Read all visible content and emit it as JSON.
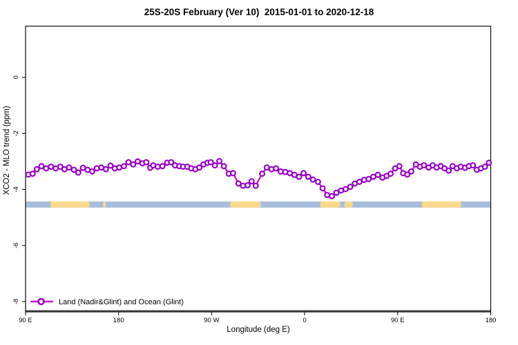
{
  "title": "25S-20S February (Ver 10)  2015-01-01 to 2020-12-18",
  "chart_data": {
    "type": "line",
    "title": "25S-20S February (Ver 10)  2015-01-01 to 2020-12-18",
    "xlabel": "Longitude (deg E)",
    "ylabel": "XCO2 - MLO trend (ppm)",
    "x_axis": {
      "note": "longitude axis runs eastward from 90E across the dateline to 180; axis_deg = unwrapped degrees",
      "range_axis_deg": [
        90,
        540
      ],
      "ticks_axis_deg": [
        90,
        180,
        270,
        360,
        450,
        540
      ],
      "tick_labels": [
        "90 E",
        "180",
        "90 W",
        "0",
        "90 E",
        "180"
      ]
    },
    "y_axis": {
      "range": [
        -8.4,
        1.8
      ],
      "ticks": [
        0,
        -2,
        -4,
        -6,
        -8
      ],
      "tick_labels": [
        "0",
        "-2",
        "-4",
        "-6",
        "-8"
      ]
    },
    "legend": {
      "position": "bottom-left",
      "entries": [
        "Land (Nadir&Glint) and Ocean (Glint)"
      ]
    },
    "colors": {
      "line": "#C217CF",
      "marker_ring": "#9803C9",
      "marker_fill": "#ffffff",
      "ocean_band": "#A6BEDC",
      "land_band": "#FBD98A",
      "axis_heavy": "#4d4d4d",
      "box": "#1a1a1a"
    },
    "surface_band": {
      "top_value": -4.43,
      "bottom_value": -4.65,
      "segments": [
        {
          "surface": "ocean",
          "from": 90,
          "to": 540
        },
        {
          "surface": "land",
          "from": 114,
          "to": 152
        },
        {
          "surface": "land",
          "from": 165,
          "to": 167.5
        },
        {
          "surface": "land",
          "from": 288,
          "to": 317.5
        },
        {
          "surface": "land",
          "from": 375,
          "to": 394.5
        },
        {
          "surface": "land",
          "from": 398.5,
          "to": 406.5
        },
        {
          "surface": "land",
          "from": 473,
          "to": 511.5
        }
      ]
    },
    "series": [
      {
        "name": "Land (Nadir&Glint) and Ocean (Glint)",
        "marker": "open-circle",
        "points": [
          [
            92.7,
            -3.47
          ],
          [
            96.9,
            -3.44
          ],
          [
            100.9,
            -3.28
          ],
          [
            105.4,
            -3.17
          ],
          [
            109.9,
            -3.25
          ],
          [
            114.5,
            -3.19
          ],
          [
            119.2,
            -3.25
          ],
          [
            123.6,
            -3.19
          ],
          [
            127.6,
            -3.28
          ],
          [
            132.1,
            -3.22
          ],
          [
            136.8,
            -3.3
          ],
          [
            141.0,
            -3.4
          ],
          [
            145.5,
            -3.23
          ],
          [
            150.0,
            -3.3
          ],
          [
            154.4,
            -3.36
          ],
          [
            158.9,
            -3.25
          ],
          [
            163.3,
            -3.22
          ],
          [
            167.8,
            -3.28
          ],
          [
            172.2,
            -3.15
          ],
          [
            176.3,
            -3.25
          ],
          [
            180.7,
            -3.22
          ],
          [
            185.2,
            -3.17
          ],
          [
            189.6,
            -3.03
          ],
          [
            194.1,
            -3.11
          ],
          [
            198.5,
            -3.0
          ],
          [
            203.0,
            -3.07
          ],
          [
            206.8,
            -3.03
          ],
          [
            210.6,
            -3.23
          ],
          [
            213.5,
            -3.14
          ],
          [
            217.9,
            -3.19
          ],
          [
            222.4,
            -3.17
          ],
          [
            226.9,
            -3.05
          ],
          [
            230.9,
            -3.03
          ],
          [
            234.6,
            -3.14
          ],
          [
            238.7,
            -3.17
          ],
          [
            242.5,
            -3.19
          ],
          [
            246.5,
            -3.19
          ],
          [
            250.3,
            -3.25
          ],
          [
            254.3,
            -3.28
          ],
          [
            258.1,
            -3.22
          ],
          [
            262.1,
            -3.11
          ],
          [
            265.9,
            -3.05
          ],
          [
            269.2,
            -3.03
          ],
          [
            273.2,
            -3.14
          ],
          [
            277.5,
            -2.99
          ],
          [
            281.9,
            -3.17
          ],
          [
            286.6,
            -3.44
          ],
          [
            290.8,
            -3.42
          ],
          [
            296.0,
            -3.79
          ],
          [
            300.4,
            -3.87
          ],
          [
            304.9,
            -3.85
          ],
          [
            308.7,
            -3.71
          ],
          [
            312.7,
            -3.87
          ],
          [
            318.9,
            -3.44
          ],
          [
            323.4,
            -3.22
          ],
          [
            327.9,
            -3.28
          ],
          [
            332.3,
            -3.25
          ],
          [
            336.8,
            -3.36
          ],
          [
            341.2,
            -3.38
          ],
          [
            345.7,
            -3.42
          ],
          [
            350.1,
            -3.48
          ],
          [
            354.6,
            -3.55
          ],
          [
            359.0,
            -3.42
          ],
          [
            363.5,
            -3.55
          ],
          [
            368.0,
            -3.65
          ],
          [
            372.9,
            -3.73
          ],
          [
            377.4,
            -3.96
          ],
          [
            381.8,
            -4.2
          ],
          [
            386.3,
            -4.24
          ],
          [
            390.7,
            -4.12
          ],
          [
            395.2,
            -4.04
          ],
          [
            399.6,
            -3.99
          ],
          [
            404.1,
            -3.91
          ],
          [
            408.5,
            -3.79
          ],
          [
            413.0,
            -3.73
          ],
          [
            417.5,
            -3.66
          ],
          [
            421.9,
            -3.63
          ],
          [
            426.4,
            -3.55
          ],
          [
            430.8,
            -3.48
          ],
          [
            435.3,
            -3.58
          ],
          [
            439.3,
            -3.52
          ],
          [
            443.1,
            -3.44
          ],
          [
            447.5,
            -3.25
          ],
          [
            451.6,
            -3.17
          ],
          [
            455.3,
            -3.42
          ],
          [
            459.3,
            -3.47
          ],
          [
            463.1,
            -3.36
          ],
          [
            467.6,
            -3.11
          ],
          [
            471.6,
            -3.19
          ],
          [
            475.4,
            -3.14
          ],
          [
            479.9,
            -3.22
          ],
          [
            483.9,
            -3.14
          ],
          [
            487.7,
            -3.22
          ],
          [
            491.7,
            -3.17
          ],
          [
            495.4,
            -3.25
          ],
          [
            499.4,
            -3.33
          ],
          [
            503.2,
            -3.17
          ],
          [
            507.1,
            -3.25
          ],
          [
            511.1,
            -3.19
          ],
          [
            515.1,
            -3.23
          ],
          [
            518.8,
            -3.17
          ],
          [
            522.8,
            -3.14
          ],
          [
            526.6,
            -3.3
          ],
          [
            530.6,
            -3.25
          ],
          [
            534.4,
            -3.19
          ],
          [
            538.2,
            -3.05
          ]
        ]
      }
    ]
  }
}
